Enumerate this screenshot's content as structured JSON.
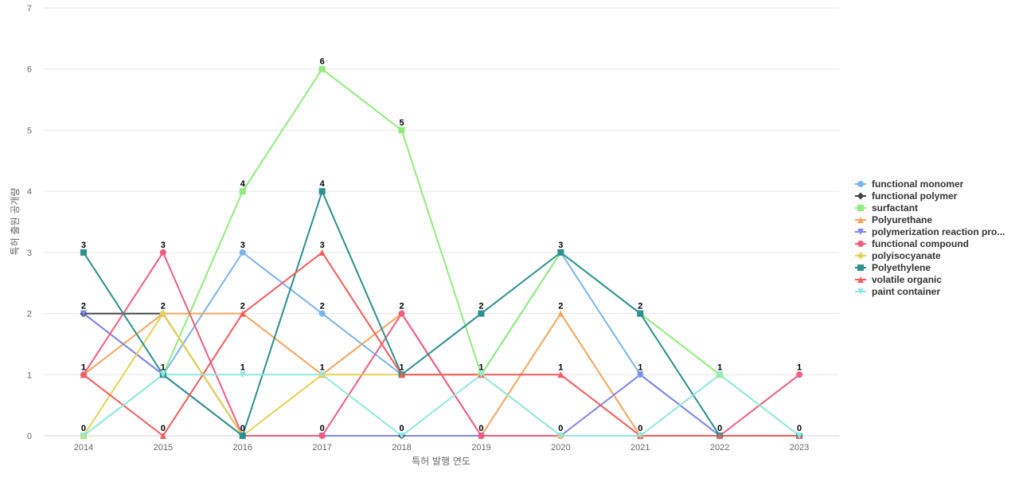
{
  "chart_data": {
    "type": "line",
    "title": "",
    "xlabel": "특허 발행 연도",
    "ylabel": "특허 출원 공개량",
    "categories": [
      "2014",
      "2015",
      "2016",
      "2017",
      "2018",
      "2019",
      "2020",
      "2021",
      "2022",
      "2023"
    ],
    "ylim": [
      0,
      7
    ],
    "yticks": [
      0,
      1,
      2,
      3,
      4,
      5,
      6,
      7
    ],
    "grid": true,
    "legend_position": "right",
    "series": [
      {
        "name": "functional monomer",
        "color": "#7cb5ec",
        "marker": "circle",
        "values": [
          2,
          1,
          3,
          2,
          1,
          1,
          3,
          1,
          0,
          0
        ]
      },
      {
        "name": "functional polymer",
        "color": "#434348",
        "marker": "diamond",
        "values": [
          2,
          2,
          0,
          0,
          0,
          0,
          0,
          0,
          0,
          0
        ]
      },
      {
        "name": "surfactant",
        "color": "#90ed7d",
        "marker": "square",
        "values": [
          0,
          1,
          4,
          6,
          5,
          1,
          3,
          2,
          1,
          0
        ]
      },
      {
        "name": "Polyurethane",
        "color": "#f7a35c",
        "marker": "triangle",
        "values": [
          1,
          2,
          2,
          1,
          2,
          0,
          2,
          0,
          0,
          0
        ]
      },
      {
        "name": "polymerization reaction pro...",
        "color": "#8085e9",
        "marker": "triangle-down",
        "values": [
          2,
          1,
          0,
          0,
          0,
          0,
          0,
          1,
          0,
          0
        ]
      },
      {
        "name": "functional compound",
        "color": "#f15c80",
        "marker": "circle",
        "values": [
          1,
          3,
          0,
          0,
          2,
          0,
          0,
          0,
          0,
          1
        ]
      },
      {
        "name": "polyisocyanate",
        "color": "#e4d354",
        "marker": "diamond",
        "values": [
          0,
          2,
          0,
          1,
          1,
          1,
          0,
          0,
          0,
          0
        ]
      },
      {
        "name": "Polyethylene",
        "color": "#2b908f",
        "marker": "square",
        "values": [
          3,
          1,
          0,
          4,
          1,
          2,
          3,
          2,
          0,
          0
        ]
      },
      {
        "name": "volatile organic",
        "color": "#f45b5b",
        "marker": "triangle",
        "values": [
          1,
          0,
          2,
          3,
          1,
          1,
          1,
          0,
          0,
          0
        ]
      },
      {
        "name": "paint container",
        "color": "#91e8e1",
        "marker": "triangle-down",
        "values": [
          0,
          1,
          1,
          1,
          0,
          1,
          0,
          0,
          1,
          0
        ]
      }
    ],
    "data_labels": [
      {
        "x": "2014",
        "text": "3",
        "value": 3
      },
      {
        "x": "2014",
        "text": "2",
        "value": 2
      },
      {
        "x": "2014",
        "text": "1",
        "value": 1
      },
      {
        "x": "2014",
        "text": "0",
        "value": 0
      },
      {
        "x": "2015",
        "text": "3",
        "value": 3
      },
      {
        "x": "2015",
        "text": "2",
        "value": 2
      },
      {
        "x": "2015",
        "text": "1",
        "value": 1
      },
      {
        "x": "2015",
        "text": "0",
        "value": 0
      },
      {
        "x": "2016",
        "text": "4",
        "value": 4
      },
      {
        "x": "2016",
        "text": "3",
        "value": 3
      },
      {
        "x": "2016",
        "text": "2",
        "value": 2
      },
      {
        "x": "2016",
        "text": "1",
        "value": 1
      },
      {
        "x": "2016",
        "text": "0",
        "value": 0
      },
      {
        "x": "2017",
        "text": "6",
        "value": 6
      },
      {
        "x": "2017",
        "text": "4",
        "value": 4
      },
      {
        "x": "2017",
        "text": "3",
        "value": 3
      },
      {
        "x": "2017",
        "text": "2",
        "value": 2
      },
      {
        "x": "2017",
        "text": "1",
        "value": 1
      },
      {
        "x": "2017",
        "text": "0",
        "value": 0
      },
      {
        "x": "2018",
        "text": "5",
        "value": 5
      },
      {
        "x": "2018",
        "text": "2",
        "value": 2
      },
      {
        "x": "2018",
        "text": "1",
        "value": 1
      },
      {
        "x": "2018",
        "text": "0",
        "value": 0
      },
      {
        "x": "2019",
        "text": "2",
        "value": 2
      },
      {
        "x": "2019",
        "text": "1",
        "value": 1
      },
      {
        "x": "2019",
        "text": "0",
        "value": 0
      },
      {
        "x": "2020",
        "text": "3",
        "value": 3
      },
      {
        "x": "2020",
        "text": "2",
        "value": 2
      },
      {
        "x": "2020",
        "text": "1",
        "value": 1
      },
      {
        "x": "2020",
        "text": "0",
        "value": 0
      },
      {
        "x": "2021",
        "text": "2",
        "value": 2
      },
      {
        "x": "2021",
        "text": "1",
        "value": 1
      },
      {
        "x": "2021",
        "text": "0",
        "value": 0
      },
      {
        "x": "2022",
        "text": "1",
        "value": 1
      },
      {
        "x": "2022",
        "text": "0",
        "value": 0
      },
      {
        "x": "2023",
        "text": "1",
        "value": 1
      },
      {
        "x": "2023",
        "text": "0",
        "value": 0
      }
    ]
  }
}
